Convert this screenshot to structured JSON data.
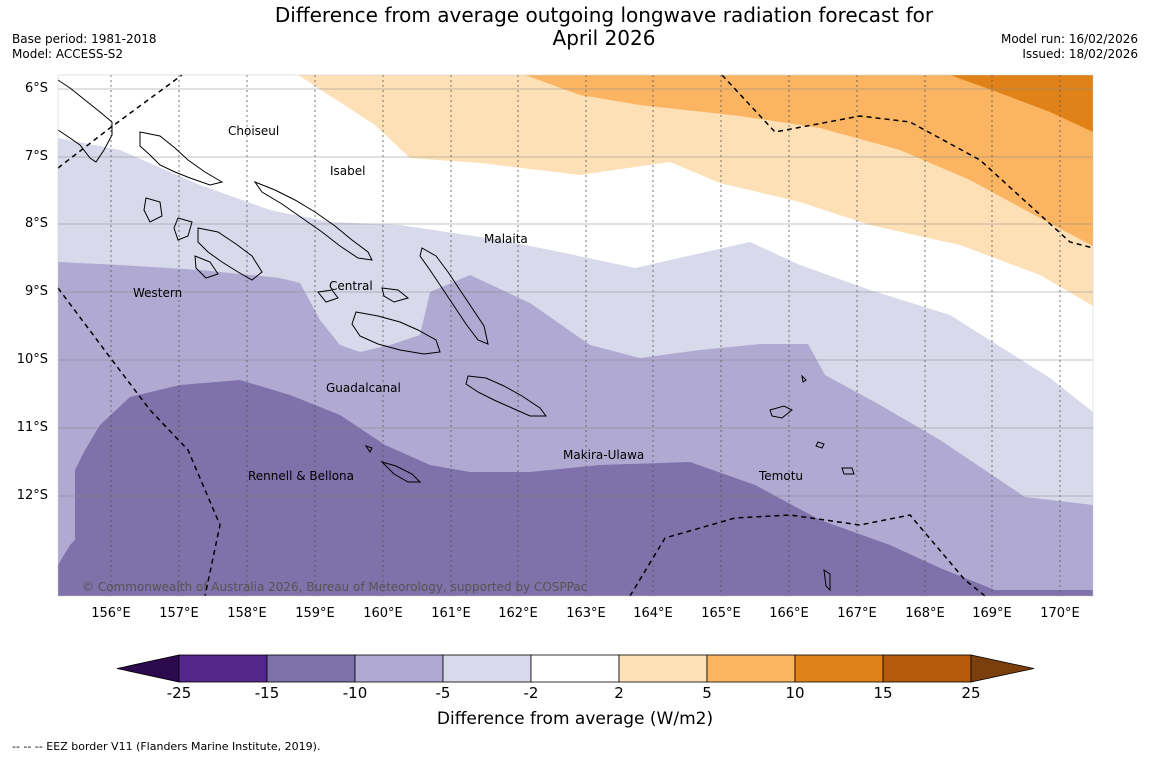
{
  "header": {
    "title_line1": "Difference from average outgoing longwave radiation forecast for",
    "title_line2": "April 2026",
    "base_period": "Base period: 1981-2018",
    "model": "Model: ACCESS-S2",
    "model_run": "Model run: 16/02/2026",
    "issued": "Issued: 18/02/2026"
  },
  "map": {
    "lat_labels": [
      "6°S",
      "7°S",
      "8°S",
      "9°S",
      "10°S",
      "11°S",
      "12°S"
    ],
    "lon_labels": [
      "156°E",
      "157°E",
      "158°E",
      "159°E",
      "160°E",
      "161°E",
      "162°E",
      "163°E",
      "164°E",
      "165°E",
      "166°E",
      "167°E",
      "168°E",
      "169°E",
      "170°E"
    ],
    "regions": {
      "choiseul": "Choiseul",
      "isabel": "Isabel",
      "malaita": "Malaita",
      "western": "Western",
      "central": "Central",
      "guadalcanal": "Guadalcanal",
      "makira": "Makira-Ulawa",
      "rennell": "Rennell & Bellona",
      "temotu": "Temotu"
    },
    "copyright": "© Commonwealth of Australia 2026, Bureau of Meteorology, supported by COSPPac"
  },
  "colorbar": {
    "ticks": [
      "-25",
      "-15",
      "-10",
      "-5",
      "-2",
      "2",
      "5",
      "10",
      "15",
      "25"
    ],
    "colors": [
      "#52268a",
      "#7f71a9",
      "#b0a9d1",
      "#d8d9ea",
      "#ffffff",
      "#fde0b6",
      "#fbb462",
      "#e18218",
      "#b45a0a"
    ],
    "low_extend_color": "#2d0a4d",
    "high_extend_color": "#7a3f0d",
    "label": "Difference from average (W/m2)"
  },
  "legend": {
    "eez": "--  --  -- EEZ border V11 (Flanders Marine Institute, 2019)."
  }
}
